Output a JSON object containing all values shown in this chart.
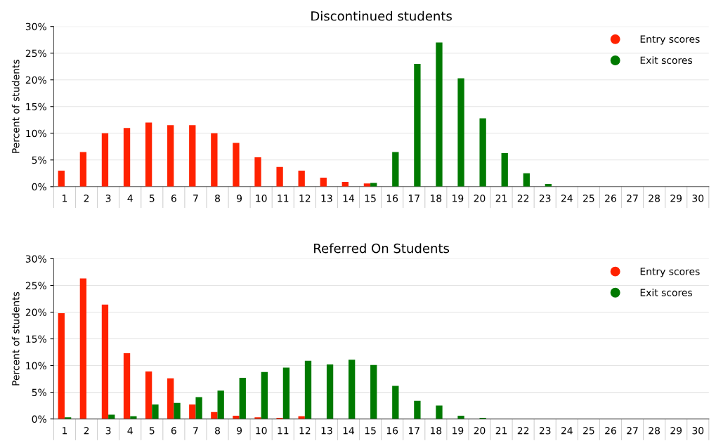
{
  "chart_data": [
    {
      "type": "bar",
      "title": "Discontinued students",
      "ylabel": "Percent of students",
      "categories": [
        "1",
        "2",
        "3",
        "4",
        "5",
        "6",
        "7",
        "8",
        "9",
        "10",
        "11",
        "12",
        "13",
        "14",
        "15",
        "16",
        "17",
        "18",
        "19",
        "20",
        "21",
        "22",
        "23",
        "24",
        "25",
        "26",
        "27",
        "28",
        "29",
        "30"
      ],
      "series": [
        {
          "name": "Entry scores",
          "color": "#ff2200",
          "values": [
            3,
            6.5,
            10,
            11,
            12,
            11.5,
            11.5,
            10,
            8.2,
            5.5,
            3.7,
            3,
            1.7,
            0.9,
            0.6,
            0,
            0,
            0,
            0,
            0,
            0,
            0,
            0,
            0,
            0,
            0,
            0,
            0,
            0,
            0
          ]
        },
        {
          "name": "Exit scores",
          "color": "#007a00",
          "values": [
            0,
            0,
            0,
            0,
            0,
            0,
            0,
            0,
            0,
            0,
            0,
            0,
            0,
            0,
            0.7,
            6.5,
            23,
            27,
            20.3,
            12.8,
            6.3,
            2.5,
            0.5,
            0,
            0,
            0,
            0,
            0,
            0,
            0
          ]
        }
      ],
      "ylim": [
        0,
        30
      ],
      "yticks": [
        {
          "value": 0,
          "label": "0%"
        },
        {
          "value": 5,
          "label": "5%"
        },
        {
          "value": 10,
          "label": "10%"
        },
        {
          "value": 15,
          "label": "15%"
        },
        {
          "value": 20,
          "label": "20%"
        },
        {
          "value": 25,
          "label": "25%"
        },
        {
          "value": 30,
          "label": "30%"
        }
      ],
      "grid": "y",
      "legend": "top right"
    },
    {
      "type": "bar",
      "title": "Referred On Students",
      "ylabel": "Percent of students",
      "categories": [
        "1",
        "2",
        "3",
        "4",
        "5",
        "6",
        "7",
        "8",
        "9",
        "10",
        "11",
        "12",
        "13",
        "14",
        "15",
        "16",
        "17",
        "18",
        "19",
        "20",
        "21",
        "22",
        "23",
        "24",
        "25",
        "26",
        "27",
        "28",
        "29",
        "30"
      ],
      "series": [
        {
          "name": "Entry scores",
          "color": "#ff2200",
          "values": [
            19.8,
            26.3,
            21.4,
            12.3,
            8.9,
            7.6,
            2.7,
            1.3,
            0.6,
            0.3,
            0.2,
            0.5,
            null,
            null,
            0,
            0,
            0,
            0,
            0,
            0,
            0,
            0,
            0,
            0,
            0,
            0,
            0,
            0,
            0,
            0
          ]
        },
        {
          "name": "Exit scores",
          "color": "#007a00",
          "values": [
            0.3,
            0,
            0.8,
            0.5,
            2.7,
            3,
            4.1,
            5.3,
            7.7,
            8.8,
            9.6,
            10.9,
            10.2,
            11.1,
            10.1,
            6.2,
            3.4,
            2.5,
            0.6,
            0.2,
            0,
            0,
            0,
            0,
            0,
            0,
            0,
            0,
            0,
            0
          ]
        }
      ],
      "ylim": [
        0,
        30
      ],
      "yticks": [
        {
          "value": 0,
          "label": "0%"
        },
        {
          "value": 5,
          "label": "5%"
        },
        {
          "value": 10,
          "label": "10%"
        },
        {
          "value": 15,
          "label": "15%"
        },
        {
          "value": 20,
          "label": "20%"
        },
        {
          "value": 25,
          "label": "25%"
        },
        {
          "value": 30,
          "label": "30%"
        }
      ],
      "grid": "y",
      "legend": "top right"
    }
  ]
}
